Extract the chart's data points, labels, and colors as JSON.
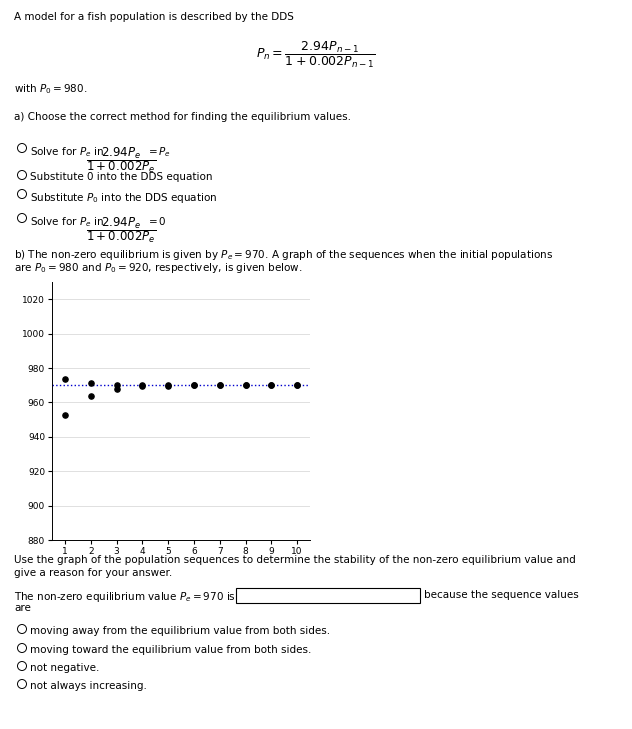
{
  "title_text": "A model for a fish population is described by the DDS",
  "formula_main": "$P_n = \\dfrac{2.94P_{n-1}}{1+0.002P_{n-1}}$",
  "with_text": "with $P_0 = 980$.",
  "part_a_text": "a) Choose the correct method for finding the equilibrium values.",
  "option1_pre": "Solve for $P_e$ in ",
  "option1_frac": "$\\dfrac{2.94P_e}{1+0.002P_e}$",
  "option1_post": "$= P_e$",
  "option2": "Substitute 0 into the DDS equation",
  "option3": "Substitute $P_0$ into the DDS equation",
  "option4_pre": "Solve for $P_e$ in ",
  "option4_frac": "$\\dfrac{2.94P_e}{1+0.002P_e}$",
  "option4_post": "$= 0$",
  "part_b_line1": "b) The non-zero equilibrium is given by $P_e = 970$. A graph of the sequences when the initial populations",
  "part_b_line2": "are $P_0 = 980$ and $P_0 = 920$, respectively, is given below.",
  "equilibrium": 970,
  "dot_color": "#000000",
  "line_color": "#0000cd",
  "ylim": [
    880,
    1030
  ],
  "yticks": [
    880,
    900,
    920,
    940,
    960,
    980,
    1000,
    1020
  ],
  "xlim": [
    0.5,
    10.5
  ],
  "xticks": [
    1,
    2,
    3,
    4,
    5,
    6,
    7,
    8,
    9,
    10
  ],
  "stability_line1": "Use the graph of the population sequences to determine the stability of the non-zero equilibrium value and",
  "stability_line2": "give a reason for your answer.",
  "answer_prefix": "The non-zero equilibrium value $P_e = 970$ is",
  "because_text": "because the sequence values",
  "are_text": "are",
  "radio_options_bottom": [
    "moving away from the equilibrium value from both sides.",
    "moving toward the equilibrium value from both sides.",
    "not negative.",
    "not always increasing."
  ],
  "bg_color": "#ffffff",
  "text_color": "#000000",
  "fontsize": 7.5,
  "graph_grid_color": "#d3d3d3"
}
